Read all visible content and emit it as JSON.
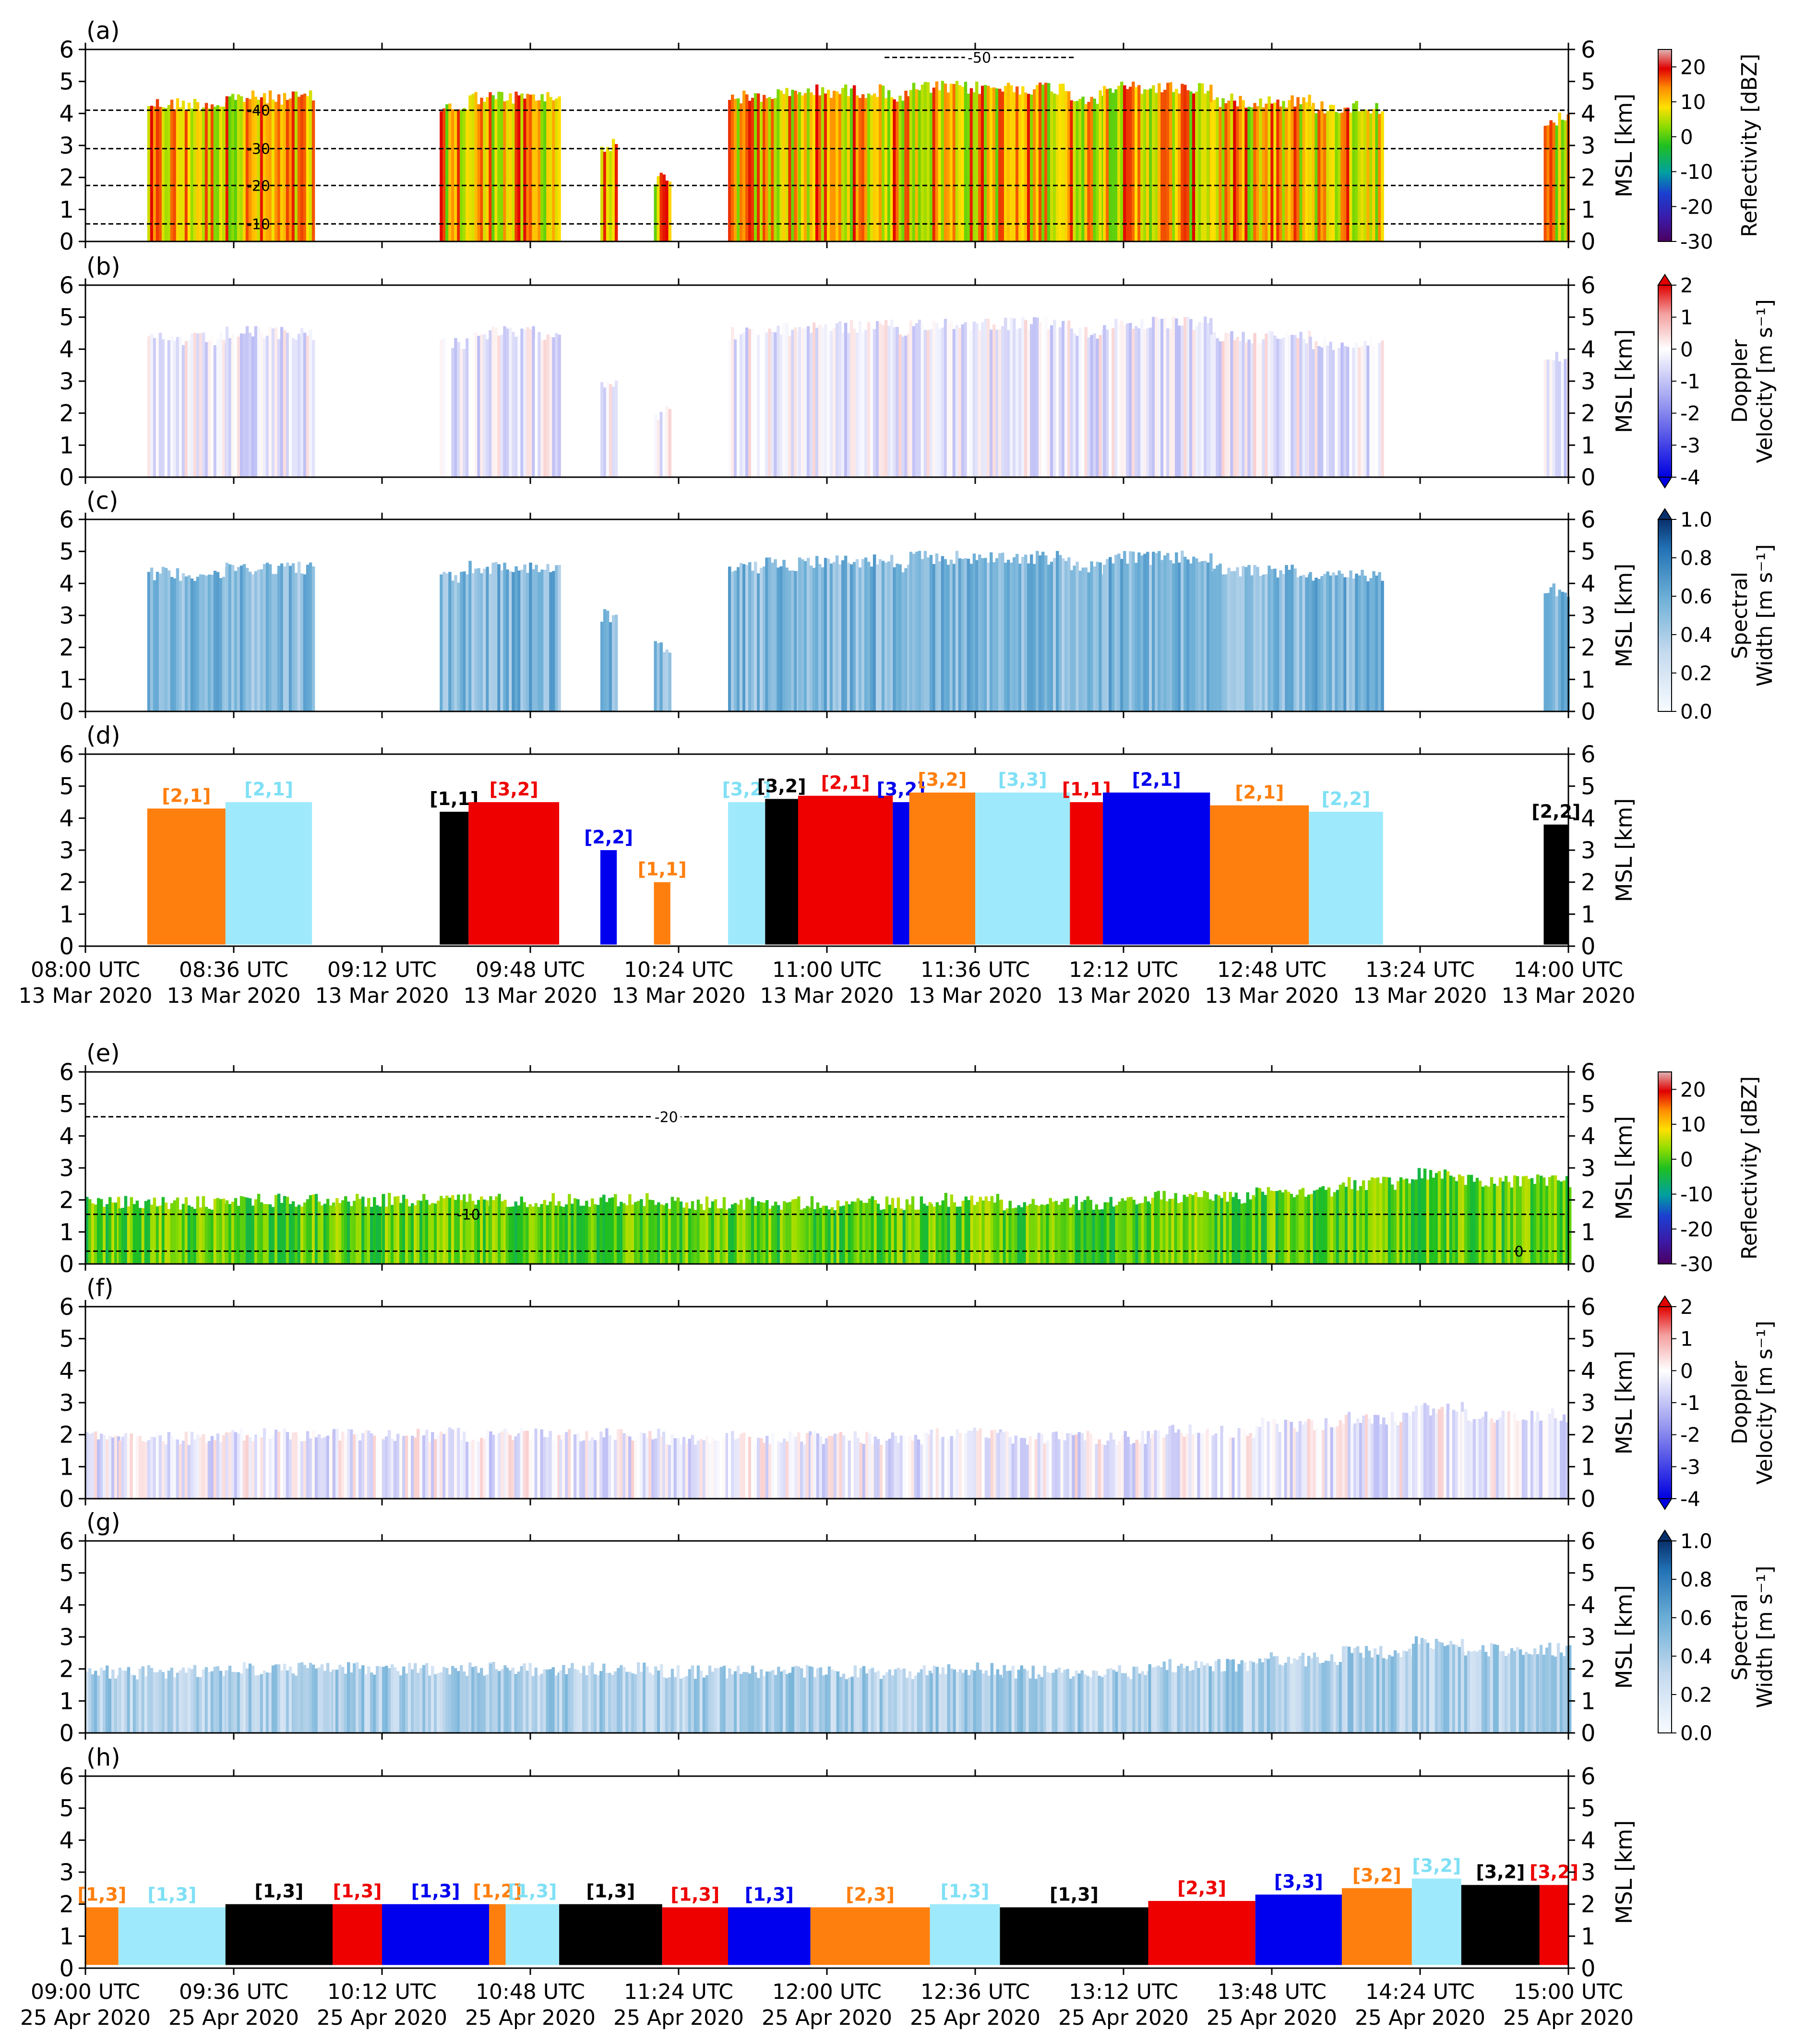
{
  "figure": {
    "x_range_top": [
      "08:00",
      "14:00"
    ],
    "x_range_bottom": [
      "09:00",
      "15:00"
    ],
    "ylim": [
      0,
      6
    ],
    "yticks": [
      "0",
      "1",
      "2",
      "3",
      "4",
      "5",
      "6"
    ],
    "ylabel": "MSL [km]"
  },
  "x_ticks_top": {
    "times": [
      "08:00 UTC",
      "08:36 UTC",
      "09:12 UTC",
      "09:48 UTC",
      "10:24 UTC",
      "11:00 UTC",
      "11:36 UTC",
      "12:12 UTC",
      "12:48 UTC",
      "13:24 UTC",
      "14:00 UTC"
    ],
    "date": "13 Mar 2020"
  },
  "x_ticks_bottom": {
    "times": [
      "09:00 UTC",
      "09:36 UTC",
      "10:12 UTC",
      "10:48 UTC",
      "11:24 UTC",
      "12:00 UTC",
      "12:36 UTC",
      "13:12 UTC",
      "13:48 UTC",
      "14:24 UTC",
      "15:00 UTC"
    ],
    "date": "25 Apr 2020"
  },
  "panels": [
    {
      "id": "a",
      "label": "(a)",
      "kind": "reflectivity"
    },
    {
      "id": "b",
      "label": "(b)",
      "kind": "velocity"
    },
    {
      "id": "c",
      "label": "(c)",
      "kind": "width"
    },
    {
      "id": "d",
      "label": "(d)",
      "kind": "classes"
    },
    {
      "id": "e",
      "label": "(e)",
      "kind": "reflectivity"
    },
    {
      "id": "f",
      "label": "(f)",
      "kind": "velocity"
    },
    {
      "id": "g",
      "label": "(g)",
      "kind": "width"
    },
    {
      "id": "h",
      "label": "(h)",
      "kind": "classes"
    }
  ],
  "colorbars": {
    "reflectivity": {
      "label": "Reflectivity [dBZ]",
      "ticks": [
        "20",
        "10",
        "0",
        "-10",
        "-20",
        "-30"
      ],
      "min": -30,
      "max": 25
    },
    "velocity": {
      "label_line1": "Doppler",
      "label_line2": "Velocity [m s⁻¹]",
      "ticks": [
        "2",
        "1",
        "0",
        "-1",
        "-2",
        "-3",
        "-4"
      ],
      "min": -4,
      "max": 2
    },
    "width": {
      "label_line1": "Spectral",
      "label_line2": "Width [m s⁻¹]",
      "ticks": [
        "1.0",
        "0.8",
        "0.6",
        "0.4",
        "0.2",
        "0.0"
      ],
      "min": 0,
      "max": 1
    }
  },
  "contours_a": [
    {
      "label": "-50",
      "height_km": 5.75
    },
    {
      "label": "-40",
      "height_km": 4.1
    },
    {
      "label": "-30",
      "height_km": 2.9
    },
    {
      "label": "-20",
      "height_km": 1.75
    },
    {
      "label": "-10",
      "height_km": 0.55
    }
  ],
  "contours_e": [
    {
      "label": "-20",
      "height_km": 4.6
    },
    {
      "label": "-10",
      "height_km": 1.55
    },
    {
      "label": "0",
      "height_km": 0.4
    }
  ],
  "colors": {
    "orange": "#ff7f0e",
    "cyan": "#9eeafc",
    "black": "#000000",
    "red": "#ee0000",
    "blue": "#0000ee"
  },
  "chart_data": [
    {
      "type": "heatmap",
      "panel": "d",
      "xlabel": "",
      "ylabel": "MSL [km]",
      "ylim": [
        0,
        6
      ],
      "segments": [
        {
          "label": "[2,1]",
          "color": "orange",
          "start": "08:15",
          "end": "08:34",
          "top_km": 4.3
        },
        {
          "label": "[2,1]",
          "color": "cyan",
          "start": "08:34",
          "end": "08:55",
          "top_km": 4.5
        },
        {
          "label": "[1,1]",
          "color": "black",
          "start": "09:26",
          "end": "09:33",
          "top_km": 4.2
        },
        {
          "label": "[3,2]",
          "color": "red",
          "start": "09:33",
          "end": "09:55",
          "top_km": 4.5
        },
        {
          "label": "[2,2]",
          "color": "blue",
          "start": "10:05",
          "end": "10:09",
          "top_km": 3.0
        },
        {
          "label": "[1,1]",
          "color": "orange",
          "start": "10:18",
          "end": "10:22",
          "top_km": 2.0
        },
        {
          "label": "[3,2]",
          "color": "cyan",
          "start": "10:36",
          "end": "10:45",
          "top_km": 4.5
        },
        {
          "label": "[3,2]",
          "color": "black",
          "start": "10:45",
          "end": "10:53",
          "top_km": 4.6
        },
        {
          "label": "[2,1]",
          "color": "red",
          "start": "10:53",
          "end": "11:16",
          "top_km": 4.7
        },
        {
          "label": "[3,2]",
          "color": "blue",
          "start": "11:16",
          "end": "11:20",
          "top_km": 4.5
        },
        {
          "label": "[3,2]",
          "color": "orange",
          "start": "11:20",
          "end": "11:36",
          "top_km": 4.8
        },
        {
          "label": "[3,3]",
          "color": "cyan",
          "start": "11:36",
          "end": "11:59",
          "top_km": 4.8
        },
        {
          "label": "[1,1]",
          "color": "red",
          "start": "11:59",
          "end": "12:07",
          "top_km": 4.5
        },
        {
          "label": "[2,1]",
          "color": "blue",
          "start": "12:07",
          "end": "12:33",
          "top_km": 4.8
        },
        {
          "label": "[2,1]",
          "color": "orange",
          "start": "12:33",
          "end": "12:57",
          "top_km": 4.4
        },
        {
          "label": "[2,2]",
          "color": "cyan",
          "start": "12:57",
          "end": "13:15",
          "top_km": 4.2
        },
        {
          "label": "[2,2]",
          "color": "black",
          "start": "13:54",
          "end": "14:00",
          "top_km": 3.8
        }
      ]
    },
    {
      "type": "heatmap",
      "panel": "h",
      "xlabel": "",
      "ylabel": "MSL [km]",
      "ylim": [
        0,
        6
      ],
      "segments": [
        {
          "label": "[1,3]",
          "color": "orange",
          "start": "09:00",
          "end": "09:08",
          "top_km": 1.9
        },
        {
          "label": "[1,3]",
          "color": "cyan",
          "start": "09:08",
          "end": "09:34",
          "top_km": 1.9
        },
        {
          "label": "[1,3]",
          "color": "black",
          "start": "09:34",
          "end": "10:00",
          "top_km": 2.0
        },
        {
          "label": "[1,3]",
          "color": "red",
          "start": "10:00",
          "end": "10:12",
          "top_km": 2.0
        },
        {
          "label": "[1,3]",
          "color": "blue",
          "start": "10:12",
          "end": "10:38",
          "top_km": 2.0
        },
        {
          "label": "[1,2]",
          "color": "orange",
          "start": "10:38",
          "end": "10:42",
          "top_km": 2.0
        },
        {
          "label": "[1,3]",
          "color": "cyan",
          "start": "10:42",
          "end": "10:55",
          "top_km": 2.0
        },
        {
          "label": "[1,3]",
          "color": "black",
          "start": "10:55",
          "end": "11:20",
          "top_km": 2.0
        },
        {
          "label": "[1,3]",
          "color": "red",
          "start": "11:20",
          "end": "11:36",
          "top_km": 1.9
        },
        {
          "label": "[1,3]",
          "color": "blue",
          "start": "11:36",
          "end": "11:56",
          "top_km": 1.9
        },
        {
          "label": "[2,3]",
          "color": "orange",
          "start": "11:56",
          "end": "12:25",
          "top_km": 1.9
        },
        {
          "label": "[1,3]",
          "color": "cyan",
          "start": "12:25",
          "end": "12:42",
          "top_km": 2.0
        },
        {
          "label": "[1,3]",
          "color": "black",
          "start": "12:42",
          "end": "13:18",
          "top_km": 1.9
        },
        {
          "label": "[2,3]",
          "color": "red",
          "start": "13:18",
          "end": "13:44",
          "top_km": 2.1
        },
        {
          "label": "[3,3]",
          "color": "blue",
          "start": "13:44",
          "end": "14:05",
          "top_km": 2.3
        },
        {
          "label": "[3,2]",
          "color": "orange",
          "start": "14:05",
          "end": "14:22",
          "top_km": 2.5
        },
        {
          "label": "[3,2]",
          "color": "cyan",
          "start": "14:22",
          "end": "14:34",
          "top_km": 2.8
        },
        {
          "label": "[3,2]",
          "color": "black",
          "start": "14:34",
          "end": "14:53",
          "top_km": 2.6
        },
        {
          "label": "[3,2]",
          "color": "red",
          "start": "14:53",
          "end": "15:00",
          "top_km": 2.6
        }
      ]
    }
  ]
}
